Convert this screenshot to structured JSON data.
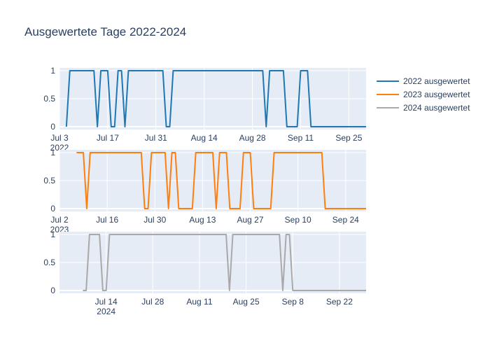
{
  "title": "Ausgewertete Tage 2022-2024",
  "colors": {
    "plot_bg": "#e5ecf6",
    "grid": "#ffffff",
    "text": "#2a3f5f"
  },
  "legend": {
    "placement": "top-right",
    "items": [
      {
        "label": "2022 ausgewertet",
        "color": "#1f77b4"
      },
      {
        "label": "2023 ausgewertet",
        "color": "#ff7f0e"
      },
      {
        "label": "2024 ausgewertet",
        "color": "#a9a9a9"
      }
    ]
  },
  "chart_data": [
    {
      "type": "line",
      "series": [
        {
          "name": "2022 ausgewertet",
          "color": "#1f77b4"
        }
      ],
      "xlim": [
        "2022-07-03",
        "2022-09-30"
      ],
      "ylim": [
        -0.05,
        1.05
      ],
      "yticks": [
        0,
        0.5,
        1
      ],
      "ytick_labels": [
        "0",
        "0.5",
        "1"
      ],
      "xticks": [
        "2022-07-03",
        "2022-07-17",
        "2022-07-31",
        "2022-08-14",
        "2022-08-28",
        "2022-09-11",
        "2022-09-25"
      ],
      "xtick_labels": [
        "Jul 3",
        "Jul 17",
        "Jul 31",
        "Aug 14",
        "Aug 28",
        "Sep 11",
        "Sep 25"
      ],
      "year_label": "2022",
      "points": [
        [
          "2022-07-05",
          0
        ],
        [
          "2022-07-06",
          1
        ],
        [
          "2022-07-13",
          1
        ],
        [
          "2022-07-14",
          0
        ],
        [
          "2022-07-15",
          1
        ],
        [
          "2022-07-17",
          1
        ],
        [
          "2022-07-18",
          0
        ],
        [
          "2022-07-19",
          0
        ],
        [
          "2022-07-20",
          1
        ],
        [
          "2022-07-21",
          1
        ],
        [
          "2022-07-22",
          0
        ],
        [
          "2022-07-23",
          1
        ],
        [
          "2022-08-02",
          1
        ],
        [
          "2022-08-03",
          0
        ],
        [
          "2022-08-04",
          0
        ],
        [
          "2022-08-05",
          1
        ],
        [
          "2022-08-31",
          1
        ],
        [
          "2022-09-01",
          0
        ],
        [
          "2022-09-02",
          1
        ],
        [
          "2022-09-06",
          1
        ],
        [
          "2022-09-07",
          0
        ],
        [
          "2022-09-10",
          0
        ],
        [
          "2022-09-11",
          1
        ],
        [
          "2022-09-13",
          1
        ],
        [
          "2022-09-14",
          0
        ],
        [
          "2022-09-30",
          0
        ]
      ]
    },
    {
      "type": "line",
      "series": [
        {
          "name": "2023 ausgewertet",
          "color": "#ff7f0e"
        }
      ],
      "xlim": [
        "2023-07-02",
        "2023-09-30"
      ],
      "ylim": [
        -0.05,
        1.05
      ],
      "yticks": [
        0,
        0.5,
        1
      ],
      "ytick_labels": [
        "0",
        "0.5",
        "1"
      ],
      "xticks": [
        "2023-07-02",
        "2023-07-16",
        "2023-07-30",
        "2023-08-13",
        "2023-08-27",
        "2023-09-10",
        "2023-09-24"
      ],
      "xtick_labels": [
        "Jul 2",
        "Jul 16",
        "Jul 30",
        "Aug 13",
        "Aug 27",
        "Sep 10",
        "Sep 24"
      ],
      "year_label": "2023",
      "points": [
        [
          "2023-07-07",
          1
        ],
        [
          "2023-07-09",
          1
        ],
        [
          "2023-07-10",
          0
        ],
        [
          "2023-07-11",
          1
        ],
        [
          "2023-07-26",
          1
        ],
        [
          "2023-07-27",
          0
        ],
        [
          "2023-07-28",
          0
        ],
        [
          "2023-07-29",
          1
        ],
        [
          "2023-08-02",
          1
        ],
        [
          "2023-08-03",
          0
        ],
        [
          "2023-08-04",
          1
        ],
        [
          "2023-08-05",
          1
        ],
        [
          "2023-08-06",
          0
        ],
        [
          "2023-08-10",
          0
        ],
        [
          "2023-08-11",
          1
        ],
        [
          "2023-08-16",
          1
        ],
        [
          "2023-08-17",
          0
        ],
        [
          "2023-08-18",
          1
        ],
        [
          "2023-08-20",
          1
        ],
        [
          "2023-08-21",
          0
        ],
        [
          "2023-08-24",
          0
        ],
        [
          "2023-08-25",
          1
        ],
        [
          "2023-08-27",
          1
        ],
        [
          "2023-08-28",
          0
        ],
        [
          "2023-09-02",
          0
        ],
        [
          "2023-09-03",
          1
        ],
        [
          "2023-09-17",
          1
        ],
        [
          "2023-09-18",
          0
        ],
        [
          "2023-09-30",
          0
        ]
      ]
    },
    {
      "type": "line",
      "series": [
        {
          "name": "2024 ausgewertet",
          "color": "#a9a9a9"
        }
      ],
      "xlim": [
        "2024-06-30",
        "2024-09-30"
      ],
      "ylim": [
        -0.05,
        1.05
      ],
      "yticks": [
        0,
        0.5,
        1
      ],
      "ytick_labels": [
        "0",
        "0.5",
        "1"
      ],
      "xticks": [
        "2024-07-14",
        "2024-07-28",
        "2024-08-11",
        "2024-08-25",
        "2024-09-08",
        "2024-09-22"
      ],
      "xtick_labels": [
        "Jul 14",
        "Jul 28",
        "Aug 11",
        "Aug 25",
        "Sep 8",
        "Sep 22"
      ],
      "year_label": "2024",
      "points": [
        [
          "2024-07-07",
          0
        ],
        [
          "2024-07-08",
          0
        ],
        [
          "2024-07-09",
          1
        ],
        [
          "2024-07-12",
          1
        ],
        [
          "2024-07-13",
          0
        ],
        [
          "2024-07-14",
          0
        ],
        [
          "2024-07-15",
          1
        ],
        [
          "2024-08-19",
          1
        ],
        [
          "2024-08-20",
          0
        ],
        [
          "2024-08-21",
          1
        ],
        [
          "2024-09-04",
          1
        ],
        [
          "2024-09-05",
          0
        ],
        [
          "2024-09-06",
          1
        ],
        [
          "2024-09-07",
          1
        ],
        [
          "2024-09-08",
          0
        ],
        [
          "2024-09-30",
          0
        ]
      ]
    }
  ]
}
